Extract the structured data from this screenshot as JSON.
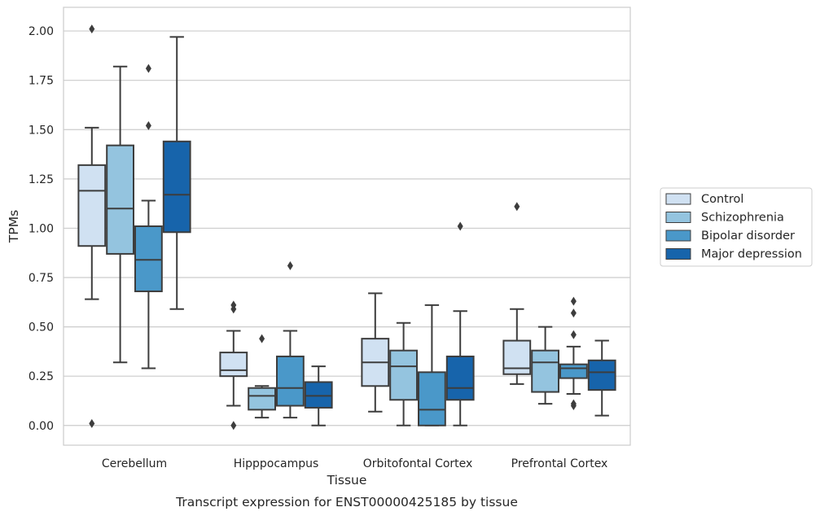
{
  "chart_data": {
    "type": "box",
    "title": "",
    "caption": "Transcript expression for ENST00000425185 by tissue",
    "xlabel": "Tissue",
    "ylabel": "TPMs",
    "ylim": [
      -0.1,
      2.12
    ],
    "yticks": [
      "0.00",
      "0.25",
      "0.50",
      "0.75",
      "1.00",
      "1.25",
      "1.50",
      "1.75",
      "2.00"
    ],
    "grid": "horizontal",
    "legend_position": "right",
    "categories": [
      "Cerebellum",
      "Hipppocampus",
      "Orbitofontal Cortex",
      "Prefrontal Cortex"
    ],
    "series": [
      {
        "name": "Control",
        "color": "#d0e1f2",
        "boxes": [
          {
            "whisker_low": 0.64,
            "q1": 0.91,
            "median": 1.19,
            "q3": 1.32,
            "whisker_high": 1.51,
            "outliers": [
              2.01,
              0.01
            ]
          },
          {
            "whisker_low": 0.1,
            "q1": 0.25,
            "median": 0.28,
            "q3": 0.37,
            "whisker_high": 0.48,
            "outliers": [
              0.61,
              0.59,
              0.0
            ]
          },
          {
            "whisker_low": 0.07,
            "q1": 0.2,
            "median": 0.32,
            "q3": 0.44,
            "whisker_high": 0.67,
            "outliers": []
          },
          {
            "whisker_low": 0.21,
            "q1": 0.26,
            "median": 0.29,
            "q3": 0.43,
            "whisker_high": 0.59,
            "outliers": [
              1.11
            ]
          }
        ]
      },
      {
        "name": "Schizophrenia",
        "color": "#94c4df",
        "boxes": [
          {
            "whisker_low": 0.32,
            "q1": 0.87,
            "median": 1.1,
            "q3": 1.42,
            "whisker_high": 1.82,
            "outliers": []
          },
          {
            "whisker_low": 0.04,
            "q1": 0.08,
            "median": 0.15,
            "q3": 0.19,
            "whisker_high": 0.2,
            "outliers": [
              0.44
            ]
          },
          {
            "whisker_low": 0.0,
            "q1": 0.13,
            "median": 0.3,
            "q3": 0.38,
            "whisker_high": 0.52,
            "outliers": []
          },
          {
            "whisker_low": 0.11,
            "q1": 0.17,
            "median": 0.32,
            "q3": 0.38,
            "whisker_high": 0.5,
            "outliers": []
          }
        ]
      },
      {
        "name": "Bipolar disorder",
        "color": "#4a98c9",
        "boxes": [
          {
            "whisker_low": 0.29,
            "q1": 0.68,
            "median": 0.84,
            "q3": 1.01,
            "whisker_high": 1.14,
            "outliers": [
              1.81,
              1.52
            ]
          },
          {
            "whisker_low": 0.04,
            "q1": 0.1,
            "median": 0.19,
            "q3": 0.35,
            "whisker_high": 0.48,
            "outliers": [
              0.81
            ]
          },
          {
            "whisker_low": 0.0,
            "q1": 0.0,
            "median": 0.08,
            "q3": 0.27,
            "whisker_high": 0.61,
            "outliers": []
          },
          {
            "whisker_low": 0.16,
            "q1": 0.24,
            "median": 0.29,
            "q3": 0.31,
            "whisker_high": 0.4,
            "outliers": [
              0.63,
              0.57,
              0.46,
              0.11,
              0.1
            ]
          }
        ]
      },
      {
        "name": "Major depression",
        "color": "#1764ab",
        "boxes": [
          {
            "whisker_low": 0.59,
            "q1": 0.98,
            "median": 1.17,
            "q3": 1.44,
            "whisker_high": 1.97,
            "outliers": []
          },
          {
            "whisker_low": 0.0,
            "q1": 0.09,
            "median": 0.15,
            "q3": 0.22,
            "whisker_high": 0.3,
            "outliers": []
          },
          {
            "whisker_low": 0.0,
            "q1": 0.13,
            "median": 0.19,
            "q3": 0.35,
            "whisker_high": 0.58,
            "outliers": [
              1.01
            ]
          },
          {
            "whisker_low": 0.05,
            "q1": 0.18,
            "median": 0.27,
            "q3": 0.33,
            "whisker_high": 0.43,
            "outliers": []
          }
        ]
      }
    ]
  }
}
